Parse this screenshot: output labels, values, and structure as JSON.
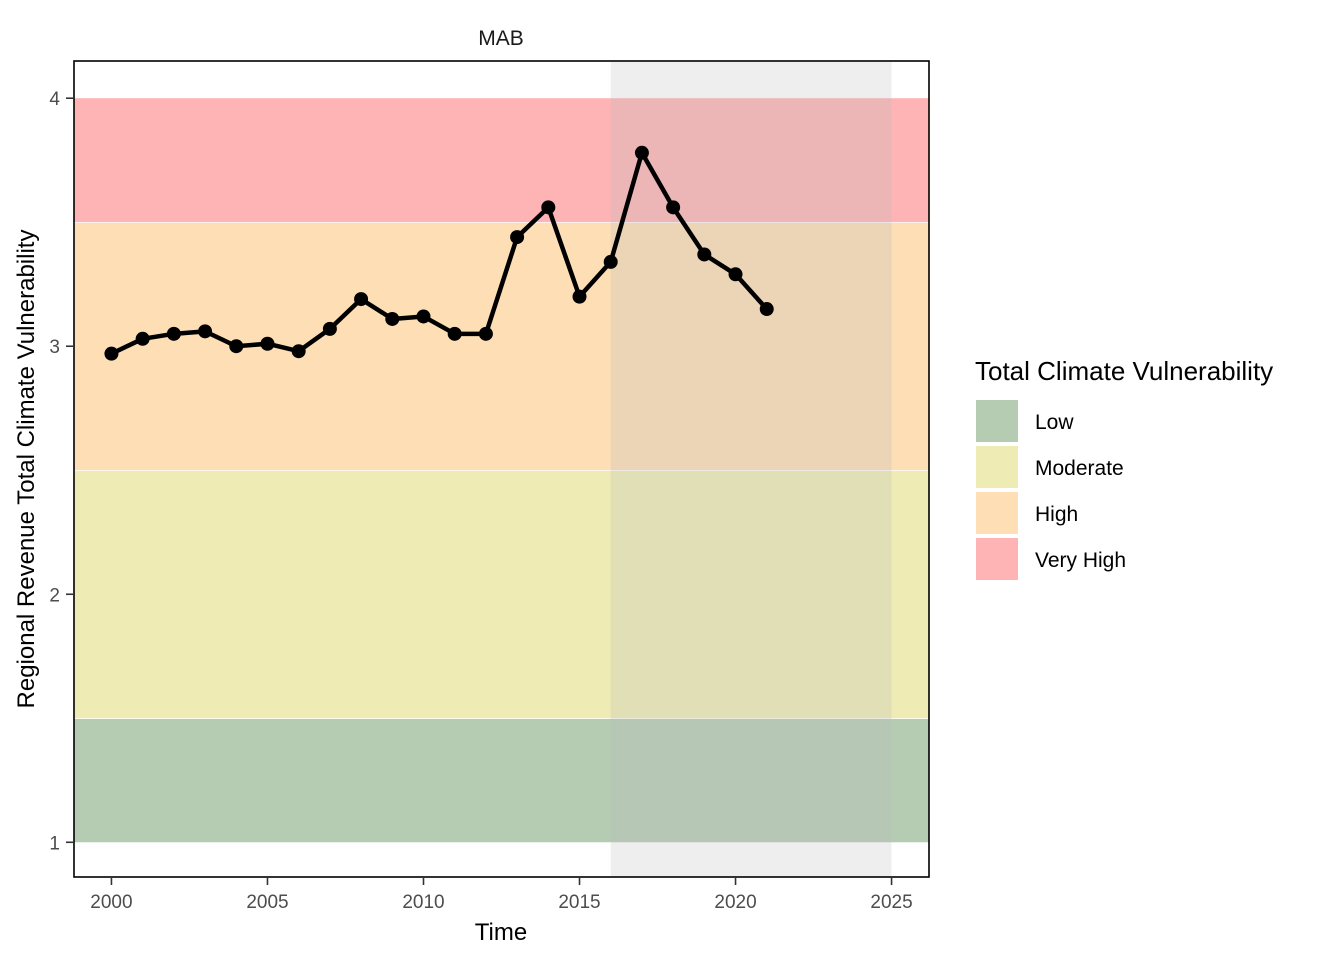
{
  "chart_data": {
    "type": "line",
    "facet_title": "MAB",
    "xlabel": "Time",
    "ylabel": "Regional Revenue Total Climate Vulnerability",
    "xlim": [
      1998.8,
      2026.2
    ],
    "ylim": [
      0.86,
      4.15
    ],
    "xticks": [
      2000,
      2005,
      2010,
      2015,
      2020,
      2025
    ],
    "yticks": [
      1,
      2,
      3,
      4
    ],
    "grid": false,
    "shaded_period": {
      "x_start": 2016,
      "x_end": 2025,
      "color": "#bdbdbd"
    },
    "bands": [
      {
        "name": "Low",
        "y_min": 1.0,
        "y_max": 1.5,
        "color": "#b5ccb3"
      },
      {
        "name": "Moderate",
        "y_min": 1.5,
        "y_max": 2.5,
        "color": "#eeebb4"
      },
      {
        "name": "High",
        "y_min": 2.5,
        "y_max": 3.5,
        "color": "#fddeb5"
      },
      {
        "name": "Very High",
        "y_min": 3.5,
        "y_max": 4.0,
        "color": "#feb4b5"
      }
    ],
    "series": [
      {
        "color": "#000000",
        "x": [
          2000,
          2001,
          2002,
          2003,
          2004,
          2005,
          2006,
          2007,
          2008,
          2009,
          2010,
          2011,
          2012,
          2013,
          2014,
          2015,
          2016,
          2017,
          2018,
          2019,
          2020,
          2021
        ],
        "values": [
          2.97,
          3.03,
          3.05,
          3.06,
          3.0,
          3.01,
          2.98,
          3.07,
          3.19,
          3.11,
          3.12,
          3.05,
          3.05,
          3.44,
          3.56,
          3.2,
          3.34,
          3.78,
          3.56,
          3.37,
          3.29,
          3.15
        ]
      }
    ],
    "legend": {
      "title": "Total Climate Vulnerability",
      "position": "right",
      "items": [
        "Low",
        "Moderate",
        "High",
        "Very High"
      ]
    }
  }
}
